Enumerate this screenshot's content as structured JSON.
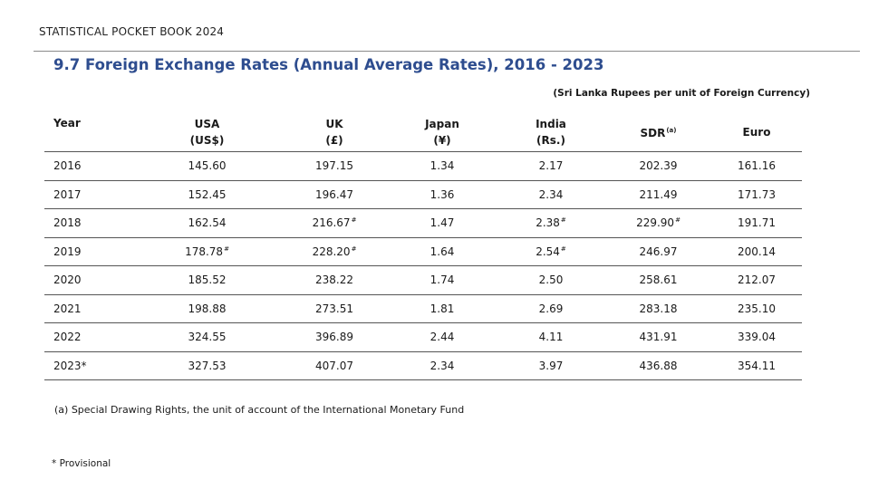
{
  "header": {
    "book_title": "STATISTICAL POCKET BOOK 2024"
  },
  "page_title": "9.7 Foreign Exchange Rates (Annual Average Rates), 2016 - 2023",
  "unit_note": "(Sri Lanka Rupees per unit of Foreign Currency)",
  "table": {
    "headers": [
      {
        "line1": "Year",
        "line2": ""
      },
      {
        "line1": "USA",
        "line2": "(US$)"
      },
      {
        "line1": "UK",
        "line2": "(£)"
      },
      {
        "line1": "Japan",
        "line2": "(¥)"
      },
      {
        "line1": "India",
        "line2": "(Rs.)"
      },
      {
        "line1": "SDR",
        "sup": "(a)",
        "line2": ""
      },
      {
        "line1": "Euro",
        "line2": ""
      }
    ],
    "rows": [
      {
        "year": "2016",
        "cells": [
          {
            "v": "145.60"
          },
          {
            "v": "197.15"
          },
          {
            "v": "1.34"
          },
          {
            "v": "2.17"
          },
          {
            "v": "202.39"
          },
          {
            "v": "161.16"
          }
        ]
      },
      {
        "year": "2017",
        "cells": [
          {
            "v": "152.45"
          },
          {
            "v": "196.47"
          },
          {
            "v": "1.36"
          },
          {
            "v": "2.34"
          },
          {
            "v": "211.49"
          },
          {
            "v": "171.73"
          }
        ]
      },
      {
        "year": "2018",
        "cells": [
          {
            "v": "162.54"
          },
          {
            "v": "216.67",
            "mark": "#"
          },
          {
            "v": "1.47"
          },
          {
            "v": "2.38",
            "mark": "#"
          },
          {
            "v": "229.90",
            "mark": "#"
          },
          {
            "v": "191.71"
          }
        ]
      },
      {
        "year": "2019",
        "cells": [
          {
            "v": "178.78",
            "mark": "#"
          },
          {
            "v": "228.20",
            "mark": "#"
          },
          {
            "v": "1.64"
          },
          {
            "v": "2.54",
            "mark": "#"
          },
          {
            "v": "246.97"
          },
          {
            "v": "200.14"
          }
        ]
      },
      {
        "year": "2020",
        "cells": [
          {
            "v": "185.52"
          },
          {
            "v": "238.22"
          },
          {
            "v": "1.74"
          },
          {
            "v": "2.50"
          },
          {
            "v": "258.61"
          },
          {
            "v": "212.07"
          }
        ]
      },
      {
        "year": "2021",
        "cells": [
          {
            "v": "198.88"
          },
          {
            "v": "273.51"
          },
          {
            "v": "1.81"
          },
          {
            "v": "2.69"
          },
          {
            "v": "283.18"
          },
          {
            "v": "235.10"
          }
        ]
      },
      {
        "year": "2022",
        "cells": [
          {
            "v": "324.55"
          },
          {
            "v": "396.89"
          },
          {
            "v": "2.44"
          },
          {
            "v": "4.11"
          },
          {
            "v": "431.91"
          },
          {
            "v": "339.04"
          }
        ]
      },
      {
        "year": "2023*",
        "cells": [
          {
            "v": "327.53"
          },
          {
            "v": "407.07"
          },
          {
            "v": "2.34"
          },
          {
            "v": "3.97"
          },
          {
            "v": "436.88"
          },
          {
            "v": "354.11"
          }
        ]
      }
    ]
  },
  "footnotes": {
    "a": "(a) Special Drawing Rights, the unit of account of the International Monetary Fund",
    "provisional": "* Provisional"
  }
}
